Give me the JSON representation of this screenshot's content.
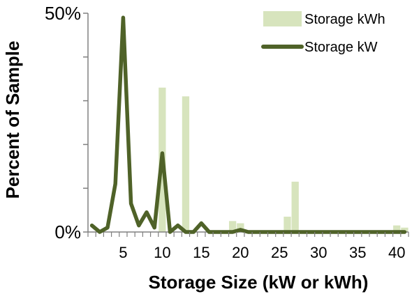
{
  "chart_data": {
    "type": "bar+line",
    "xlabel": "Storage Size (kW or kWh)",
    "ylabel": "Percent of Sample",
    "ylim": [
      0,
      50
    ],
    "xlim": [
      0,
      41
    ],
    "y_ticks": [
      0,
      50
    ],
    "y_tick_labels": [
      "0%",
      "50%"
    ],
    "x_ticks": [
      5,
      10,
      15,
      20,
      25,
      30,
      35,
      40
    ],
    "x_tick_labels": [
      "5",
      "10",
      "15",
      "20",
      "25",
      "30",
      "35",
      "40"
    ],
    "legend_position": "top-right",
    "series": [
      {
        "name": "Storage kWh",
        "kind": "bar",
        "color": "#d7e4bd",
        "x": [
          10,
          13,
          19,
          20,
          26,
          27,
          40,
          41
        ],
        "values": [
          33,
          31,
          2.5,
          2,
          3.5,
          11.5,
          1.5,
          1
        ]
      },
      {
        "name": "Storage kW",
        "kind": "line",
        "color": "#4f6228",
        "x": [
          1,
          2,
          3,
          4,
          5,
          6,
          7,
          8,
          9,
          10,
          11,
          12,
          13,
          14,
          15,
          16,
          17,
          18,
          19,
          20,
          21,
          22,
          23,
          24,
          25,
          26,
          27,
          28,
          29,
          30,
          31,
          32,
          33,
          34,
          35,
          36,
          37,
          38,
          39,
          40,
          41
        ],
        "values": [
          1.5,
          0,
          1,
          11,
          49,
          6.5,
          1.5,
          4.5,
          1,
          18,
          0,
          1.5,
          0,
          0,
          2,
          0,
          0,
          0,
          0,
          0.5,
          0,
          0,
          0,
          0,
          0,
          0,
          0,
          0,
          0,
          0,
          0,
          0,
          0,
          0,
          0,
          0,
          0,
          0,
          0,
          0,
          0
        ]
      }
    ]
  }
}
